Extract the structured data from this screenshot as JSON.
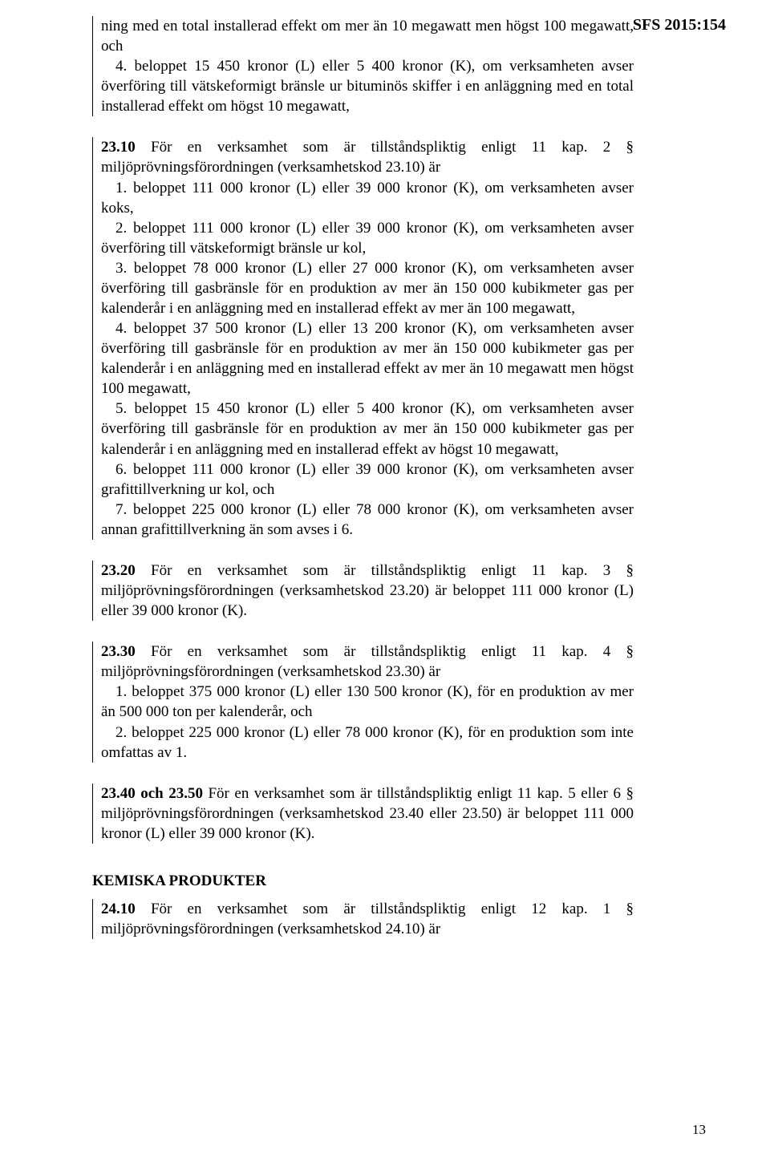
{
  "sfs_label": "SFS 2015:154",
  "sections": {
    "s1": {
      "p1": "ning med en total installerad effekt om mer än 10 megawatt men högst 100 megawatt, och",
      "p2": "4. beloppet 15 450 kronor (L) eller 5 400 kronor (K), om verksamheten avser överföring till vätskeformigt bränsle ur bituminös skiffer i en anläggning med en total installerad effekt om högst 10 megawatt,"
    },
    "s2": {
      "lead_bold": "23.10",
      "lead_rest": "   För en verksamhet som är tillståndspliktig enligt 11 kap. 2 § miljöprövningsförordningen (verksamhetskod 23.10) är",
      "p1": "1. beloppet 111 000 kronor (L) eller 39 000 kronor (K), om verksamheten avser koks,",
      "p2": "2. beloppet 111 000 kronor (L) eller 39 000 kronor (K), om verksamheten avser överföring till vätskeformigt bränsle ur kol,",
      "p3": "3. beloppet 78 000 kronor (L) eller 27 000 kronor (K), om verksamheten avser överföring till gasbränsle för en produktion av mer än 150 000 kubikmeter gas per kalenderår i en anläggning med en installerad effekt av mer än 100 megawatt,",
      "p4": "4. beloppet 37 500 kronor (L) eller 13 200 kronor (K), om verksamheten avser överföring till gasbränsle för en produktion av mer än 150 000 kubikmeter gas per kalenderår i en anläggning med en installerad effekt av mer än 10 megawatt men högst 100 megawatt,",
      "p5": "5. beloppet 15 450 kronor (L) eller 5 400 kronor (K), om verksamheten avser överföring till gasbränsle för en produktion av mer än 150 000 kubikmeter gas per kalenderår i en anläggning med en installerad effekt av högst 10 megawatt,",
      "p6": "6. beloppet 111 000 kronor (L) eller 39 000 kronor (K), om verksamheten avser grafittillverkning ur kol, och",
      "p7": "7. beloppet 225 000 kronor (L) eller 78 000 kronor (K), om verksamheten avser annan grafittillverkning än som avses i 6."
    },
    "s3": {
      "lead_bold": "23.20",
      "lead_rest": "   För en verksamhet som är tillståndspliktig enligt 11 kap. 3 § miljöprövningsförordningen (verksamhetskod 23.20) är beloppet 111 000 kronor (L) eller 39 000 kronor (K)."
    },
    "s4": {
      "lead_bold": "23.30",
      "lead_rest": "   För en verksamhet som är tillståndspliktig enligt 11 kap. 4 § miljöprövningsförordningen (verksamhetskod 23.30) är",
      "p1": "1. beloppet 375 000 kronor (L) eller 130 500 kronor (K), för en produktion av mer än 500 000 ton per kalenderår, och",
      "p2": "2. beloppet 225 000 kronor (L) eller 78 000 kronor (K), för en produktion som inte omfattas av 1."
    },
    "s5": {
      "lead_bold": "23.40 och 23.50",
      "lead_rest": "   För en verksamhet som är tillståndspliktig enligt 11 kap. 5 eller 6 § miljöprövningsförordningen (verksamhetskod 23.40 eller 23.50) är beloppet 111 000 kronor (L) eller 39 000 kronor (K)."
    },
    "kemiska_heading": "KEMISKA PRODUKTER",
    "s6": {
      "lead_bold": "24.10",
      "lead_rest": "   För en verksamhet som är tillståndspliktig enligt 12 kap. 1 § miljöprövningsförordningen (verksamhetskod 24.10) är"
    }
  },
  "page_number": "13"
}
